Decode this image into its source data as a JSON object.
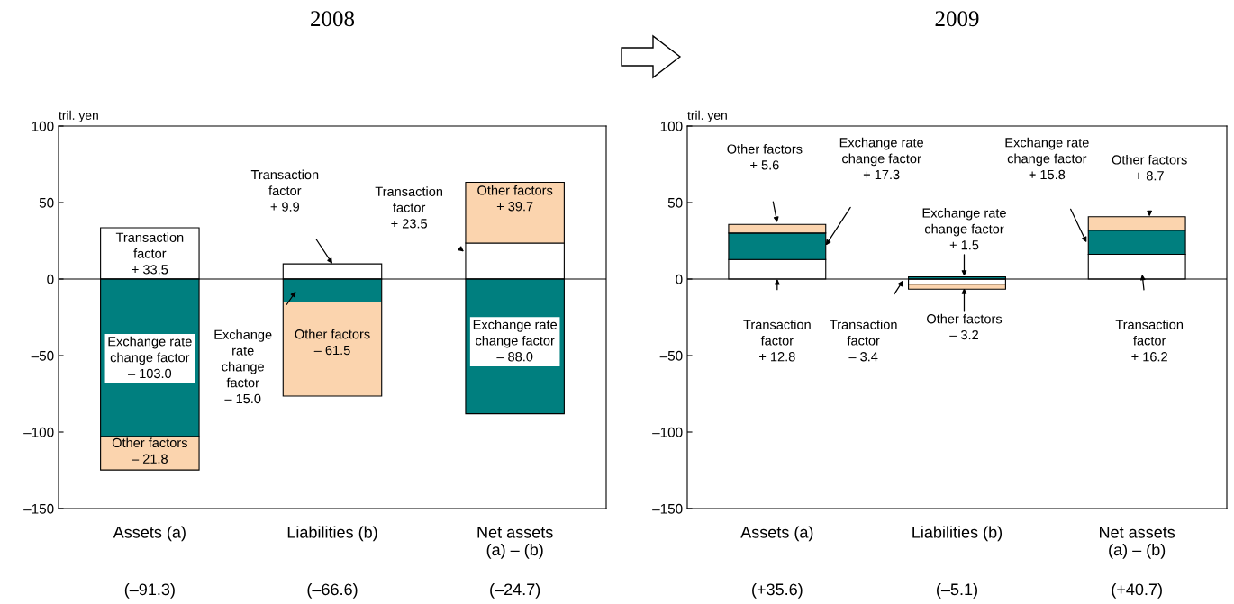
{
  "chart_data": [
    {
      "type": "bar",
      "stacked": true,
      "title": "2008",
      "ylabel": "tril. yen",
      "categories": [
        "Assets (a)",
        "Liabilities (b)",
        "Net assets\n(a) – (b)"
      ],
      "ylim": [
        -150,
        100
      ],
      "yticks": [
        {
          "value": -150,
          "label": "–150"
        },
        {
          "value": -100,
          "label": "–100"
        },
        {
          "value": -50,
          "label": "–50"
        },
        0,
        50,
        100
      ],
      "series": [
        {
          "color": "#ffffff",
          "values": [
            33.5,
            9.9,
            23.5
          ]
        },
        {
          "color": "#007f7f",
          "values": [
            -103.0,
            -15.0,
            -88.0
          ]
        },
        {
          "color": "#fbd4ae",
          "values": [
            -21.8,
            -61.5,
            39.7
          ]
        }
      ],
      "annotations": [
        "Transaction\nfactor\n+ 33.5",
        "Exchange rate\nchange factor\n– 103.0",
        "Other factors\n– 21.8",
        "Transaction\nfactor\n+ 9.9",
        "Exchange\nrate\nchange\nfactor\n– 15.0",
        "Other factors\n– 61.5",
        "Transaction\nfactor\n+ 23.5",
        "Other factors\n+ 39.7",
        "Exchange rate\nchange factor\n– 88.0",
        "(–91.3)",
        "(–66.6)",
        "(–24.7)"
      ]
    },
    {
      "type": "bar",
      "stacked": true,
      "title": "2009",
      "ylabel": "tril. yen",
      "categories": [
        "Assets (a)",
        "Liabilities (b)",
        "Net assets\n(a) – (b)"
      ],
      "ylim": [
        -150,
        100
      ],
      "yticks": [
        {
          "value": -150,
          "label": "–150"
        },
        {
          "value": -100,
          "label": "–100"
        },
        {
          "value": -50,
          "label": "–50"
        },
        0,
        50,
        100
      ],
      "series": [
        {
          "color": "#ffffff",
          "values": [
            12.8,
            -3.4,
            16.2
          ]
        },
        {
          "color": "#007f7f",
          "values": [
            17.3,
            1.5,
            15.8
          ]
        },
        {
          "color": "#fbd4ae",
          "values": [
            5.6,
            -3.2,
            8.7
          ]
        }
      ],
      "annotations": [
        "Other factors\n+ 5.6",
        "Exchange rate\nchange factor\n+ 17.3",
        "Transaction\nfactor\n+ 12.8",
        "Exchange rate\nchange factor\n+ 1.5",
        "Transaction\nfactor\n– 3.4",
        "Other factors\n– 3.2",
        "Exchange rate\nchange factor\n+ 15.8",
        "Other factors\n+ 8.7",
        "Transaction\nfactor\n+ 16.2",
        "(+35.6)",
        "(–5.1)",
        "(+40.7)"
      ]
    }
  ]
}
